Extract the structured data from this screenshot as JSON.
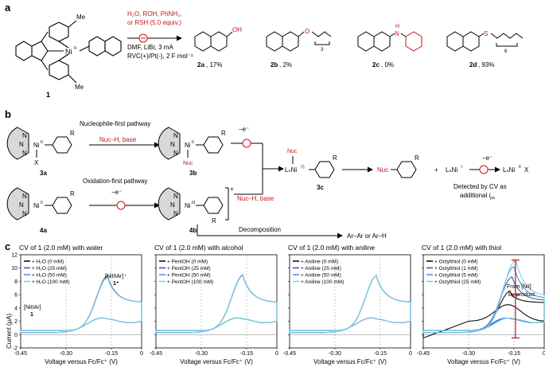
{
  "panel_a": {
    "letter": "a",
    "catalyst_label": "1",
    "metal_label": "Ni",
    "metal_ox": "II",
    "me_top": "Me",
    "me_bottom": "Me",
    "reagents_line1": "H₂O, ROH, PhNH₂,",
    "reagents_line2": "or RSH (5.0 equiv.)",
    "conditions_line1": "DMF, LiBr, 3 mA",
    "conditions_line2": "RVC(+)/Pt(-), 2 F mol⁻¹",
    "products": [
      {
        "sub": "OH",
        "name": "2a",
        "yield": ", 17%"
      },
      {
        "sub": "O",
        "repeat": "3",
        "name": "2b",
        "yield": ", 2%"
      },
      {
        "sub": "N",
        "subH": "H",
        "name": "2c",
        "yield": ", 0%"
      },
      {
        "sub": "S",
        "repeat": "6",
        "name": "2d",
        "yield": ", 93%"
      }
    ]
  },
  "panel_b": {
    "letter": "b",
    "path1_title": "Nucleophile-first pathway",
    "path2_title": "Oxidation-first pathway",
    "reagent_nuc": "Nuc–H, base",
    "electron": "−e⁻",
    "r_group": "R",
    "x_group": "X",
    "nuc_group": "Nuc",
    "n_atom": "N",
    "ni_label": "Ni",
    "ni_ii": "II",
    "ni_iii": "III",
    "charge_plus": "+",
    "lab_3a": "3a",
    "lab_3b": "3b",
    "lab_3c": "3c",
    "lab_4a": "4a",
    "lab_4b": "4b",
    "ln_ni_3c": "LₙNi",
    "ln_ni_ox_3c": "(I)",
    "ln_ni_i": "LₙNi",
    "ln_ni_i_ox": "I",
    "ln_ni_x": "LₙNi",
    "ln_ni_x_ox": "II",
    "ln_ni_x_x": "X",
    "plus_sign": "+",
    "decomp_label": "Decomposition",
    "decomp_product": "Ar–Ar or Ar–H",
    "detected_line1": "Detected by CV as",
    "detected_line2": "additional ",
    "detected_ipa": "i",
    "detected_ipa_sub": "pa"
  },
  "panel_c": {
    "letter": "c",
    "y_axis_label": "Current (μA)",
    "x_axis_label": "Voltage versus Fc/Fc⁺ (V)",
    "ann_ni_ii_ar": "[NiIIAr]",
    "ann_ni_ii_ar_bold": "1",
    "ann_ni_iii_ar": "[NiIIIAr]⁺",
    "ann_ni_iii_ar_bold": "1⁺",
    "ann_ni_i_line1": "From [NiI]",
    "ann_ni_i_line2": "by-product"
  },
  "chart_data": [
    {
      "type": "line",
      "title": "CV of 1 (2.0 mM) with water",
      "xlabel": "Voltage versus Fc/Fc⁺ (V)",
      "ylabel": "Current (μA)",
      "xlim": [
        -0.45,
        -0.05
      ],
      "ylim": [
        -2,
        12
      ],
      "x_ticks": [
        "-0.45",
        "-0.30",
        "-0.15",
        "0"
      ],
      "y_ticks": [
        "-2",
        "0",
        "2",
        "4",
        "6",
        "8",
        "10",
        "12"
      ],
      "legend_position": "top-left",
      "series": [
        {
          "name": "+ H₂O (0 mM)",
          "color": "#111111",
          "peak_x": -0.16,
          "peak_y": 8.3
        },
        {
          "name": "+ H₂O (25 mM)",
          "color": "#2f5fb3",
          "peak_x": -0.16,
          "peak_y": 8.2
        },
        {
          "name": "+ H₂O (50 mM)",
          "color": "#5b8fdc",
          "peak_x": -0.16,
          "peak_y": 8.2
        },
        {
          "name": "+ H₂O (100 mM)",
          "color": "#7fd0e8",
          "peak_x": -0.16,
          "peak_y": 8.1
        }
      ]
    },
    {
      "type": "line",
      "title": "CV of 1 (2.0 mM) with alcohol",
      "xlabel": "Voltage versus Fc/Fc⁺ (V)",
      "ylabel": "Current (μA)",
      "xlim": [
        -0.45,
        -0.05
      ],
      "ylim": [
        -2,
        12
      ],
      "x_ticks": [
        "-0.45",
        "-0.30",
        "-0.15",
        "0"
      ],
      "legend_position": "top-left",
      "series": [
        {
          "name": "+ PentOH (0 mM)",
          "color": "#111111",
          "peak_x": -0.16,
          "peak_y": 8.4
        },
        {
          "name": "+ PentOH (25 mM)",
          "color": "#2f5fb3",
          "peak_x": -0.16,
          "peak_y": 8.4
        },
        {
          "name": "+ PentOH (50 mM)",
          "color": "#5b8fdc",
          "peak_x": -0.16,
          "peak_y": 8.4
        },
        {
          "name": "+ PentOH (100 mM)",
          "color": "#7fd0e8",
          "peak_x": -0.16,
          "peak_y": 8.3
        }
      ]
    },
    {
      "type": "line",
      "title": "CV of 1 (2.0 mM) with aniline",
      "xlabel": "Voltage versus Fc/Fc⁺ (V)",
      "ylabel": "Current (μA)",
      "xlim": [
        -0.45,
        -0.05
      ],
      "ylim": [
        -2,
        12
      ],
      "x_ticks": [
        "-0.45",
        "-0.30",
        "-0.15",
        "0"
      ],
      "legend_position": "top-left",
      "series": [
        {
          "name": "+ Aniline (0 mM)",
          "color": "#111111",
          "peak_x": -0.16,
          "peak_y": 8.3
        },
        {
          "name": "+ Aniline (25 mM)",
          "color": "#2f5fb3",
          "peak_x": -0.16,
          "peak_y": 8.3
        },
        {
          "name": "+ Aniline (50 mM)",
          "color": "#5b8fdc",
          "peak_x": -0.16,
          "peak_y": 8.3
        },
        {
          "name": "+ Aniline (100 mM)",
          "color": "#7fd0e8",
          "peak_x": -0.16,
          "peak_y": 8.3
        }
      ]
    },
    {
      "type": "line",
      "title": "CV of 1 (2.0 mM) with thiol",
      "xlabel": "Voltage versus Fc/Fc⁺ (V)",
      "ylabel": "Current (μA)",
      "xlim": [
        -0.45,
        -0.05
      ],
      "ylim": [
        -2,
        12
      ],
      "x_ticks": [
        "-0.45",
        "-0.30",
        "-0.15",
        "0"
      ],
      "legend_position": "top-left",
      "series": [
        {
          "name": "+ Octylthiol (0 mM)",
          "color": "#111111",
          "peak_x": -0.16,
          "peak_y": 6.0
        },
        {
          "name": "+ Octylthiol (1 mM)",
          "color": "#2f5fb3",
          "peak_x": -0.155,
          "peak_y": 8.1
        },
        {
          "name": "+ Octylthiol (5 mM)",
          "color": "#5b8fdc",
          "peak_x": -0.15,
          "peak_y": 9.6
        },
        {
          "name": "+ Octylthiol (25 mM)",
          "color": "#7fd0e8",
          "peak_x": -0.145,
          "peak_y": 10.5
        }
      ]
    }
  ]
}
